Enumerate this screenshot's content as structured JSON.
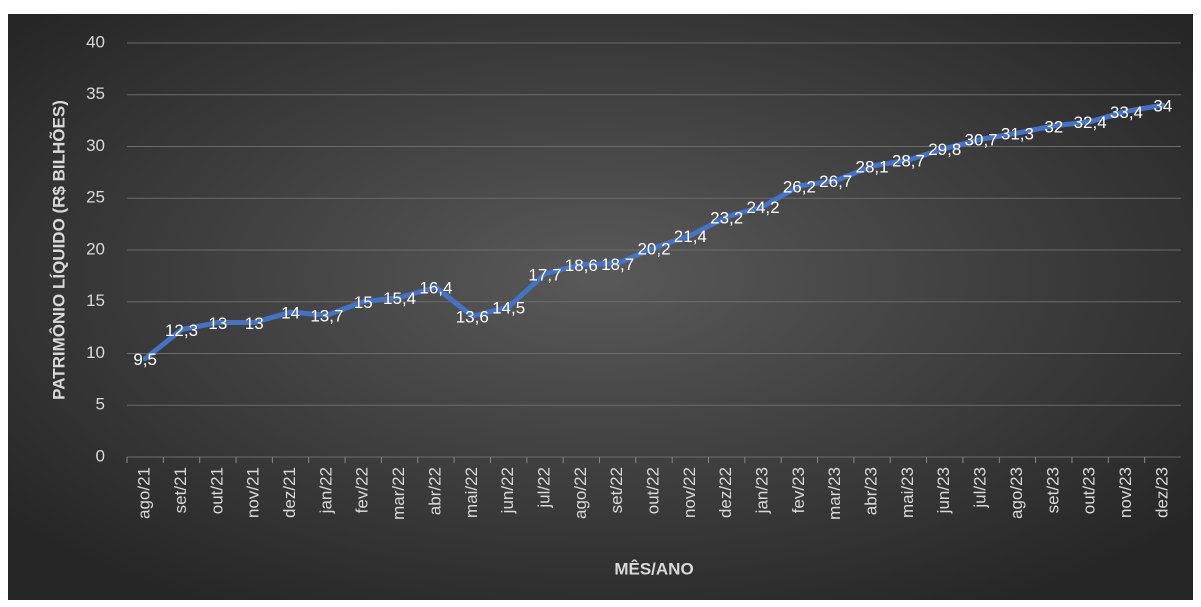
{
  "chart_data": {
    "type": "line",
    "x_label": "MÊS/ANO",
    "y_label": "PATRIMÔNIO LÍQUIDO (R$ BILHÕES)",
    "categories": [
      "ago/21",
      "set/21",
      "out/21",
      "nov/21",
      "dez/21",
      "jan/22",
      "fev/22",
      "mar/22",
      "abr/22",
      "mai/22",
      "jun/22",
      "jul/22",
      "ago/22",
      "set/22",
      "out/22",
      "nov/22",
      "dez/22",
      "jan/23",
      "fev/23",
      "mar/23",
      "abr/23",
      "mai/23",
      "jun/23",
      "jul/23",
      "ago/23",
      "set/23",
      "out/23",
      "nov/23",
      "dez/23"
    ],
    "series": [
      {
        "color": "#4472c4",
        "values": [
          9.5,
          12.3,
          13,
          13,
          14,
          13.7,
          15,
          15.4,
          16.4,
          13.6,
          14.5,
          17.7,
          18.6,
          18.7,
          20.2,
          21.4,
          23.2,
          24.2,
          26.2,
          26.7,
          28.1,
          28.7,
          29.8,
          30.7,
          31.3,
          32,
          32.4,
          33.4,
          34
        ],
        "value_labels": [
          "9,5",
          "12,3",
          "13",
          "13",
          "14",
          "13,7",
          "15",
          "15,4",
          "16,4",
          "13,6",
          "14,5",
          "17,7",
          "18,6",
          "18,7",
          "20,2",
          "21,4",
          "23,2",
          "24,2",
          "26,2",
          "26,7",
          "28,1",
          "28,7",
          "29,8",
          "30,7",
          "31,3",
          "32",
          "32,4",
          "33,4",
          "34"
        ]
      }
    ],
    "ylim": [
      0,
      40
    ],
    "yticks": [
      0,
      5,
      10,
      15,
      20,
      25,
      30,
      35,
      40
    ],
    "grid": true
  }
}
